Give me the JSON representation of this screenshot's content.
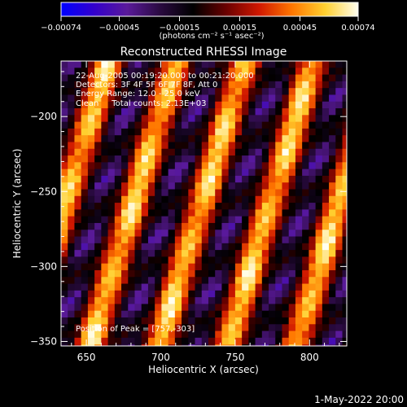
{
  "colors": {
    "background": "#000000",
    "text": "#ffffff",
    "colormap_stops": [
      "#0000ff",
      "#3300cc",
      "#5a1a9a",
      "#2a0a40",
      "#000000",
      "#6a0000",
      "#d01800",
      "#ff7700",
      "#ffd030",
      "#fffff0"
    ]
  },
  "colorbar": {
    "tick_labels": [
      "-0.00074",
      "-0.00045",
      "-0.00015",
      "0.00015",
      "0.00045",
      "0.00074"
    ],
    "unit_label": "(photons cm⁻² s⁻¹ asec⁻²)",
    "range": [
      -0.00074,
      0.00074
    ]
  },
  "chart_data": {
    "type": "heatmap",
    "title": "Reconstructed RHESSI Image",
    "xlabel": "Heliocentric X (arcsec)",
    "ylabel": "Heliocentric Y (arcsec)",
    "xlim": [
      633,
      825
    ],
    "ylim": [
      -353,
      -163
    ],
    "xticks": [
      650,
      700,
      750,
      800
    ],
    "yticks": [
      -200,
      -250,
      -300,
      -350
    ],
    "xtick_labels": [
      "650",
      "700",
      "750",
      "800"
    ],
    "ytick_labels": [
      "−200",
      "−250",
      "−300",
      "−350"
    ],
    "colorscale_range": [
      -0.00074,
      0.00074
    ],
    "pattern": {
      "stripe_direction_deg": 73,
      "stripe_spacing_arcsec": 44,
      "peak_position": [
        757,
        -303
      ]
    },
    "info_lines": [
      "22-Aug-2005 00:19:20.000 to 00:21:20.000",
      "Detectors: 3F 4F 5F 6F 7F 8F, Att 0",
      "Energy Range: 12.0 - 25.0 keV",
      "Clean     Total counts: 2.13E+03"
    ],
    "peak_label": "Position of Peak = [757,-303]"
  },
  "footer": {
    "timestamp": "1-May-2022 20:00"
  }
}
